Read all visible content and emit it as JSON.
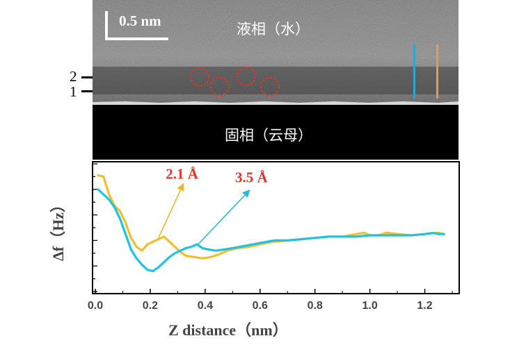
{
  "image": {
    "scale_bar_label": "0.5 nm",
    "liquid_phase_label": "液相（水）",
    "solid_phase_label": "固相（云母）",
    "layer_labels": [
      "2",
      "1"
    ],
    "marker_colors": {
      "circle": "#e8312b",
      "blue": "#2aa6d8",
      "orange": "#e0a43a"
    }
  },
  "chart_data": {
    "type": "line",
    "xlabel": "Z distance（nm）",
    "ylabel": "Δf（Hz）",
    "xlim": [
      0,
      1.3
    ],
    "ylim": [
      0,
      10
    ],
    "x_ticks": [
      "0.0",
      "0.2",
      "0.4",
      "0.6",
      "0.8",
      "1.0",
      "1.2"
    ],
    "x_tick_values": [
      0.0,
      0.2,
      0.4,
      0.6,
      0.8,
      1.0,
      1.2
    ],
    "annotations": [
      {
        "text": "2.1 Å",
        "color": "#e8312b",
        "arrow_color": "#e8b830",
        "from": [
          0.23,
          4.2
        ],
        "to": [
          0.32,
          8.4
        ]
      },
      {
        "text": "3.5 Å",
        "color": "#e8312b",
        "arrow_color": "#2cb8d8",
        "from": [
          0.37,
          3.6
        ],
        "to": [
          0.56,
          7.9
        ]
      }
    ],
    "series": [
      {
        "name": "orange",
        "color": "#f0bf2e",
        "x": [
          0.01,
          0.03,
          0.05,
          0.07,
          0.09,
          0.11,
          0.13,
          0.15,
          0.17,
          0.19,
          0.21,
          0.23,
          0.25,
          0.27,
          0.29,
          0.31,
          0.33,
          0.36,
          0.39,
          0.42,
          0.45,
          0.48,
          0.52,
          0.56,
          0.6,
          0.65,
          0.7,
          0.75,
          0.8,
          0.85,
          0.9,
          0.95,
          0.98,
          1.0,
          1.03,
          1.06,
          1.1,
          1.15,
          1.2,
          1.25,
          1.27
        ],
        "y": [
          9.1,
          9.0,
          7.6,
          6.7,
          6.3,
          5.4,
          4.2,
          3.5,
          3.2,
          3.7,
          3.9,
          4.1,
          4.3,
          3.9,
          3.5,
          3.1,
          2.8,
          2.7,
          2.6,
          2.7,
          2.9,
          3.2,
          3.4,
          3.5,
          3.7,
          3.9,
          4.0,
          4.1,
          4.2,
          4.3,
          4.3,
          4.5,
          4.6,
          4.4,
          4.4,
          4.6,
          4.5,
          4.4,
          4.5,
          4.6,
          4.5
        ]
      },
      {
        "name": "cyan",
        "color": "#1ec3e3",
        "x": [
          0.01,
          0.03,
          0.05,
          0.07,
          0.09,
          0.11,
          0.13,
          0.15,
          0.17,
          0.19,
          0.21,
          0.23,
          0.25,
          0.27,
          0.29,
          0.31,
          0.33,
          0.35,
          0.37,
          0.39,
          0.41,
          0.44,
          0.47,
          0.5,
          0.55,
          0.6,
          0.65,
          0.7,
          0.75,
          0.8,
          0.85,
          0.9,
          0.95,
          1.0,
          1.05,
          1.1,
          1.15,
          1.2,
          1.23,
          1.25,
          1.27
        ],
        "y": [
          8.0,
          7.6,
          7.2,
          6.6,
          5.7,
          4.5,
          3.3,
          2.6,
          2.1,
          1.7,
          1.6,
          1.9,
          2.3,
          2.7,
          3.0,
          3.2,
          3.4,
          3.5,
          3.7,
          3.4,
          3.3,
          3.2,
          3.3,
          3.4,
          3.6,
          3.8,
          4.0,
          4.0,
          4.1,
          4.2,
          4.3,
          4.3,
          4.3,
          4.4,
          4.4,
          4.4,
          4.4,
          4.5,
          4.6,
          4.5,
          4.5
        ]
      }
    ]
  }
}
